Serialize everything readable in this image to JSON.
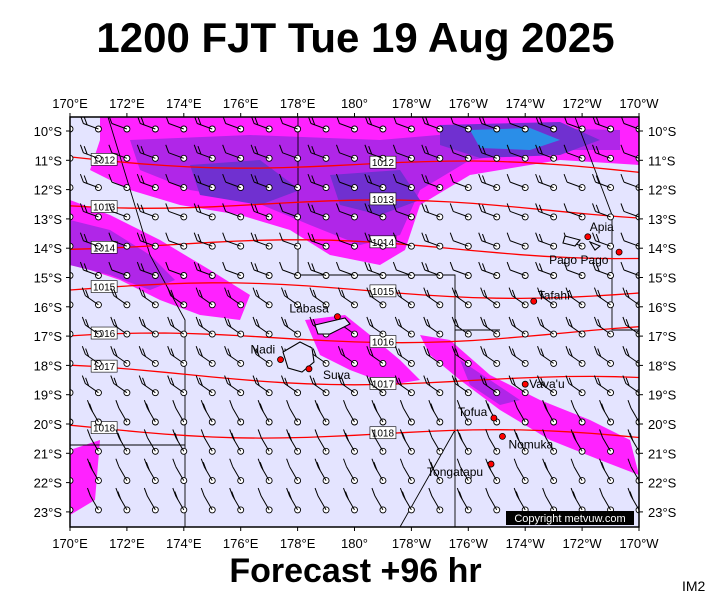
{
  "title": "1200 FJT Tue 19 Aug 2025",
  "footer": "Forecast +96 hr",
  "product_code": "IM2",
  "copyright": "Copyright metvuw.com",
  "lon_labels": [
    "170°E",
    "172°E",
    "174°E",
    "176°E",
    "178°E",
    "180°",
    "178°W",
    "176°W",
    "174°W",
    "172°W",
    "170°W"
  ],
  "lat_labels": [
    "10°S",
    "11°S",
    "12°S",
    "13°S",
    "14°S",
    "15°S",
    "16°S",
    "17°S",
    "18°S",
    "19°S",
    "20°S",
    "21°S",
    "22°S",
    "23°S"
  ],
  "isobars": [
    {
      "label": "1012",
      "y0": 11.2,
      "y1": 11.7
    },
    {
      "label": "1013",
      "y0": 12.6,
      "y1": 13.0
    },
    {
      "label": "1014",
      "y0": 14.0,
      "y1": 14.3
    },
    {
      "label": "1015",
      "y0": 15.5,
      "y1": 15.6
    },
    {
      "label": "1016",
      "y0": 17.2,
      "y1": 16.9
    },
    {
      "label": "1017",
      "y0": 18.2,
      "y1": 18.6
    },
    {
      "label": "1018",
      "y0": 20.0,
      "y1": 20.4
    }
  ],
  "places": [
    {
      "name": "Apia",
      "lon": -171.8,
      "lat": 13.8
    },
    {
      "name": "Pago Pago",
      "lon": -170.7,
      "lat": 14.3
    },
    {
      "name": "Tafahi",
      "lon": -173.7,
      "lat": 15.9
    },
    {
      "name": "Labasa",
      "lon": 179.4,
      "lat": 16.4
    },
    {
      "name": "Nadi",
      "lon": 177.4,
      "lat": 17.8
    },
    {
      "name": "Suva",
      "lon": 178.4,
      "lat": 18.1
    },
    {
      "name": "Vava'u",
      "lon": -174.0,
      "lat": 18.6
    },
    {
      "name": "Tofua",
      "lon": -175.1,
      "lat": 19.7
    },
    {
      "name": "Nomuka",
      "lon": -174.8,
      "lat": 20.3
    },
    {
      "name": "Tongatapu",
      "lon": -175.2,
      "lat": 21.2
    }
  ],
  "colors": {
    "background": "#e4e4ff",
    "rain_light": "#ff22ff",
    "rain_mid": "#b026e8",
    "rain_heavy": "#7030d0",
    "rain_extreme": "#2a8ee8",
    "isobar": "#ff0000",
    "border": "#000000"
  }
}
